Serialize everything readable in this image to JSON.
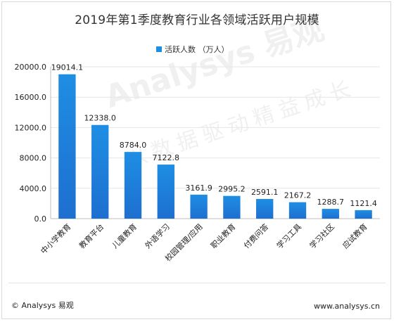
{
  "title": "2019年第1季度教育行业各领域活跃用户规模",
  "footer": {
    "brand": "© Analysys 易观",
    "url": "www.analysys.cn"
  },
  "watermark": {
    "main": "Analysys 易观",
    "sub": "以数据驱动精益成长"
  },
  "colors": {
    "bar_top": "#1e8ee3",
    "bar_bottom": "#1e6fd0",
    "grid": "#e6e6e6",
    "text": "#222222"
  },
  "chart_data": {
    "type": "bar",
    "title": "2019年第1季度教育行业各领域活跃用户规模",
    "legend": "活跃人数 （万人）",
    "legend_position": "top",
    "grid": true,
    "categories": [
      "中小学教育",
      "教育平台",
      "儿童教育",
      "外语学习",
      "校园管理/应用",
      "职业教育",
      "付费问答",
      "学习工具",
      "学习社区",
      "应试教育"
    ],
    "series": [
      {
        "name": "活跃人数 （万人）",
        "values": [
          19014.1,
          12338.0,
          8784.0,
          7122.8,
          3161.9,
          2995.2,
          2591.1,
          2167.2,
          1288.7,
          1121.4
        ]
      }
    ],
    "value_labels": [
      "19014.1",
      "12338.0",
      "8784.0",
      "7122.8",
      "3161.9",
      "2995.2",
      "2591.1",
      "2167.2",
      "1288.7",
      "1121.4"
    ],
    "ylim": [
      0,
      20000
    ],
    "yticks": [
      "0.0",
      "4000.0",
      "8000.0",
      "12000.0",
      "16000.0",
      "20000.0"
    ],
    "ytick_values": [
      0,
      4000,
      8000,
      12000,
      16000,
      20000
    ],
    "xlabel": "",
    "ylabel": ""
  }
}
